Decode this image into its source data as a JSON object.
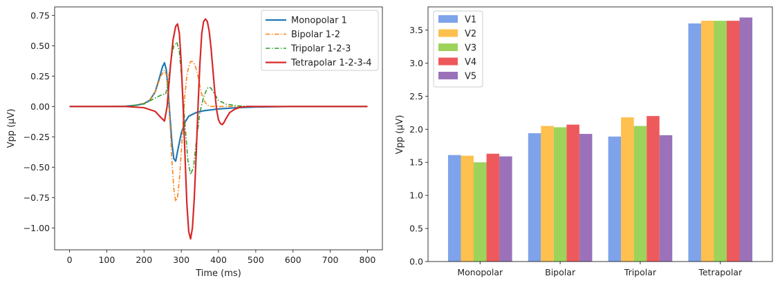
{
  "chart_data": [
    {
      "type": "line",
      "title": "",
      "xlabel": "Time (ms)",
      "ylabel": "Vpp (μV)",
      "xlim": [
        -40,
        840
      ],
      "ylim": [
        -1.18,
        0.82
      ],
      "xticks": [
        0,
        100,
        200,
        300,
        400,
        500,
        600,
        700,
        800
      ],
      "xtick_labels": [
        "0",
        "100",
        "200",
        "300",
        "400",
        "500",
        "600",
        "700",
        "800"
      ],
      "yticks": [
        0.75,
        0.5,
        0.25,
        0.0,
        -0.25,
        -0.5,
        -0.75,
        -1.0
      ],
      "ytick_labels": [
        "0.75",
        "0.50",
        "0.25",
        "0.00",
        "−0.25",
        "−0.50",
        "−0.75",
        "−1.00"
      ],
      "grid": false,
      "legend_position": "top-right",
      "series": [
        {
          "name": "Monopolar 1",
          "color": "#1f77b4",
          "dash": "solid",
          "x": [
            0,
            100,
            150,
            180,
            200,
            215,
            230,
            240,
            250,
            255,
            260,
            265,
            270,
            275,
            280,
            285,
            290,
            300,
            310,
            320,
            340,
            360,
            400,
            450,
            500,
            600,
            800
          ],
          "y": [
            0,
            0,
            0.002,
            0.01,
            0.025,
            0.05,
            0.12,
            0.22,
            0.33,
            0.36,
            0.3,
            0.12,
            -0.1,
            -0.3,
            -0.43,
            -0.45,
            -0.37,
            -0.22,
            -0.13,
            -0.08,
            -0.05,
            -0.035,
            -0.02,
            -0.01,
            -0.004,
            0,
            0
          ]
        },
        {
          "name": "Bipolar 1-2",
          "color": "#ff7f0e",
          "dash": "dashdot",
          "x": [
            0,
            100,
            150,
            180,
            200,
            215,
            230,
            245,
            255,
            260,
            265,
            270,
            275,
            280,
            285,
            290,
            295,
            300,
            305,
            310,
            315,
            320,
            325,
            330,
            335,
            340,
            345,
            350,
            355,
            360,
            365,
            370,
            380,
            400,
            450,
            500,
            800
          ],
          "y": [
            0,
            0,
            0.002,
            0.01,
            0.025,
            0.05,
            0.12,
            0.25,
            0.3,
            0.26,
            0.1,
            -0.15,
            -0.45,
            -0.68,
            -0.78,
            -0.75,
            -0.6,
            -0.38,
            -0.12,
            0.1,
            0.25,
            0.33,
            0.37,
            0.37,
            0.35,
            0.31,
            0.25,
            0.17,
            0.1,
            0.06,
            0.03,
            0.01,
            0,
            0,
            0,
            0,
            0
          ]
        },
        {
          "name": "Tripolar 1-2-3",
          "color": "#2ca02c",
          "dash": "dashdot",
          "x": [
            0,
            100,
            150,
            200,
            230,
            250,
            258,
            265,
            272,
            280,
            288,
            295,
            302,
            310,
            318,
            325,
            333,
            340,
            350,
            360,
            370,
            375,
            380,
            390,
            400,
            420,
            450,
            500,
            800
          ],
          "y": [
            0,
            0,
            0.002,
            0.02,
            0.07,
            0.1,
            0.1,
            0.2,
            0.38,
            0.5,
            0.53,
            0.45,
            0.2,
            -0.15,
            -0.45,
            -0.56,
            -0.5,
            -0.3,
            -0.05,
            0.08,
            0.15,
            0.16,
            0.15,
            0.1,
            0.05,
            0.02,
            0.005,
            0,
            0
          ]
        },
        {
          "name": "Tetrapolar 1-2-3-4",
          "color": "#d62728",
          "dash": "solid",
          "x": [
            0,
            100,
            150,
            200,
            230,
            245,
            255,
            262,
            270,
            278,
            285,
            290,
            295,
            300,
            305,
            310,
            315,
            320,
            325,
            330,
            335,
            340,
            345,
            350,
            355,
            360,
            365,
            370,
            375,
            380,
            385,
            390,
            395,
            400,
            405,
            410,
            415,
            420,
            430,
            445,
            460,
            480,
            500,
            800
          ],
          "y": [
            0,
            0,
            0,
            -0.01,
            -0.04,
            -0.09,
            -0.12,
            0.0,
            0.3,
            0.55,
            0.66,
            0.68,
            0.6,
            0.35,
            0.0,
            -0.4,
            -0.8,
            -1.03,
            -1.09,
            -1.0,
            -0.75,
            -0.4,
            0.0,
            0.35,
            0.6,
            0.7,
            0.72,
            0.7,
            0.62,
            0.48,
            0.3,
            0.12,
            -0.03,
            -0.11,
            -0.14,
            -0.15,
            -0.13,
            -0.1,
            -0.05,
            -0.02,
            -0.005,
            0,
            0,
            0
          ]
        }
      ]
    },
    {
      "type": "bar",
      "title": "",
      "xlabel": "",
      "ylabel": "Vpp (μV)",
      "ylim": [
        0,
        3.85
      ],
      "yticks": [
        0.0,
        0.5,
        1.0,
        1.5,
        2.0,
        2.5,
        3.0,
        3.5
      ],
      "ytick_labels": [
        "0.0",
        "0.5",
        "1.0",
        "1.5",
        "2.0",
        "2.5",
        "3.0",
        "3.5"
      ],
      "categories": [
        "Monopolar",
        "Bipolar",
        "Tripolar",
        "Tetrapolar"
      ],
      "grid": false,
      "legend_position": "top-left",
      "series": [
        {
          "name": "V1",
          "color": "#7ea3ea",
          "values": [
            1.61,
            1.94,
            1.89,
            3.6
          ]
        },
        {
          "name": "V2",
          "color": "#fec04e",
          "values": [
            1.6,
            2.05,
            2.18,
            3.64
          ]
        },
        {
          "name": "V3",
          "color": "#9dd35a",
          "values": [
            1.5,
            2.03,
            2.05,
            3.64
          ]
        },
        {
          "name": "V4",
          "color": "#ee5a5b",
          "values": [
            1.63,
            2.07,
            2.2,
            3.64
          ]
        },
        {
          "name": "V5",
          "color": "#9b72ba",
          "values": [
            1.59,
            1.93,
            1.91,
            3.69
          ]
        }
      ]
    }
  ]
}
